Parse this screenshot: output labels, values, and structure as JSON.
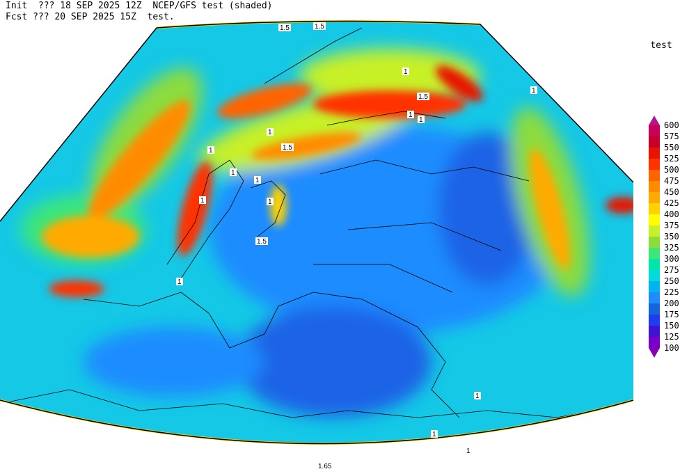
{
  "header": {
    "lines": [
      "Init  ??? 18 SEP 2025 12Z  NCEP/GFS test (shaded)",
      "Fcst ??? 20 SEP 2025 15Z  test."
    ]
  },
  "legend": {
    "title": "test",
    "levels": [
      100,
      125,
      150,
      175,
      200,
      225,
      250,
      275,
      300,
      325,
      350,
      375,
      400,
      425,
      450,
      475,
      500,
      525,
      550,
      575,
      600
    ],
    "colors": [
      "#8c00b4",
      "#7800c8",
      "#3c14d2",
      "#1e3cf0",
      "#1464dc",
      "#1e8cff",
      "#00b4f0",
      "#00dcdc",
      "#00e6aa",
      "#3ce678",
      "#8cdc3c",
      "#c8f028",
      "#ffff00",
      "#ffd200",
      "#ffaa00",
      "#ff8c00",
      "#ff6400",
      "#ff3200",
      "#e61400",
      "#c80028",
      "#c8005a",
      "#b4148c"
    ]
  },
  "contour_labels": [
    "1.5",
    "1.5",
    "1",
    "1.5",
    "1",
    "1",
    "1",
    "1",
    "1",
    "1",
    "1.5",
    "1",
    "1",
    "1",
    "1.5",
    "1",
    "1",
    "1",
    "1",
    "1.65"
  ]
}
